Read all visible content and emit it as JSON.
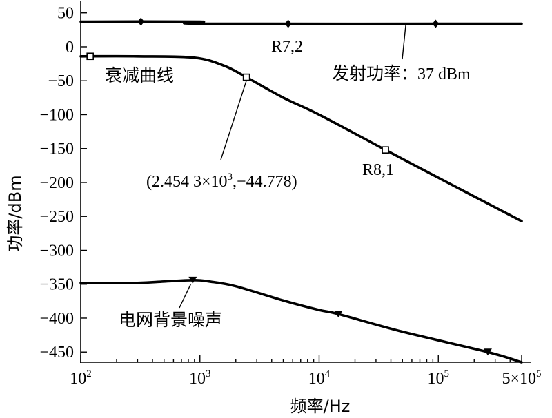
{
  "chart_data": {
    "type": "line",
    "title": "",
    "xlabel": "频率/Hz",
    "ylabel": "功率/dBm",
    "x_scale": "log",
    "xlim": [
      100,
      500000
    ],
    "ylim": [
      -465,
      68
    ],
    "x_ticks": [
      {
        "value": 100,
        "base": "10",
        "exp": "2"
      },
      {
        "value": 1000,
        "base": "10",
        "exp": "3"
      },
      {
        "value": 10000,
        "base": "10",
        "exp": "4"
      },
      {
        "value": 100000,
        "base": "10",
        "exp": "5"
      },
      {
        "value": 500000,
        "base": "5×10",
        "exp": "5"
      }
    ],
    "y_ticks": [
      {
        "value": 50,
        "label": "50"
      },
      {
        "value": 0,
        "label": "0"
      },
      {
        "value": -50,
        "label": "−50"
      },
      {
        "value": -100,
        "label": "−100"
      },
      {
        "value": -150,
        "label": "−150"
      },
      {
        "value": -200,
        "label": "−200"
      },
      {
        "value": -250,
        "label": "−250"
      },
      {
        "value": -300,
        "label": "−300"
      },
      {
        "value": -350,
        "label": "−350"
      },
      {
        "value": -400,
        "label": "−400"
      },
      {
        "value": -450,
        "label": "−450"
      }
    ],
    "grid": false,
    "series": [
      {
        "name": "发射功率",
        "marker": "diamond",
        "x": [
          100,
          1000,
          1100,
          500000
        ],
        "y": [
          37,
          37,
          34,
          34
        ],
        "marker_x": [
          320,
          5500,
          95000
        ]
      },
      {
        "name": "衰减曲线",
        "marker": "square",
        "x": [
          100,
          300,
          900,
          1600,
          2454.3,
          5000,
          10000,
          36000,
          100000,
          500000
        ],
        "y": [
          -14,
          -14,
          -16,
          -28,
          -44.778,
          -75,
          -100,
          -152,
          -193,
          -257
        ],
        "marker_x": [
          120,
          2454.3,
          36000
        ]
      },
      {
        "name": "电网背景噪声",
        "marker": "triangle",
        "x": [
          100,
          300,
          500,
          900,
          1200,
          2000,
          5000,
          10000,
          14500,
          50000,
          260000,
          500000
        ],
        "y": [
          -348,
          -348,
          -346,
          -344,
          -346,
          -353,
          -374,
          -388,
          -394,
          -420,
          -450,
          -465
        ],
        "marker_x": [
          870,
          14500,
          260000
        ]
      }
    ],
    "annotations": [
      {
        "id": "tx-power",
        "name": "发射功率",
        "suffix": "：37 dBm"
      },
      {
        "id": "r72",
        "text": "R7,2"
      },
      {
        "id": "attenuation",
        "text": "衰减曲线"
      },
      {
        "id": "datapoint",
        "prefix": "(2.454 3×10",
        "sup": "3",
        "suffix": ",−44.778)"
      },
      {
        "id": "r81",
        "text": "R8,1"
      },
      {
        "id": "noise",
        "text": "电网背景噪声"
      }
    ]
  }
}
